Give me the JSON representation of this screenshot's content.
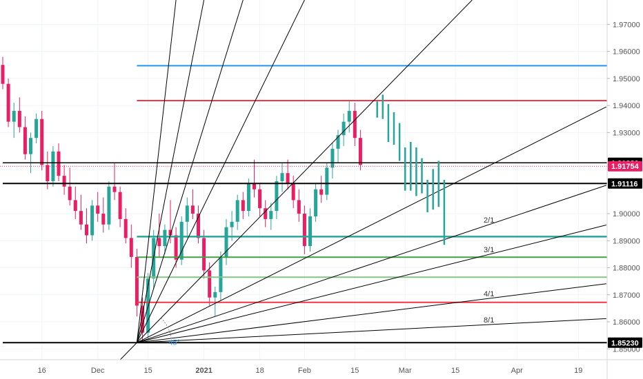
{
  "chart_data": {
    "type": "candlestick",
    "ylim": [
      1.846,
      1.979
    ],
    "y_ticks": [
      1.97,
      1.96,
      1.95,
      1.94,
      1.93,
      1.9,
      1.89,
      1.88,
      1.87,
      1.86,
      1.85
    ],
    "y_tick_labels": [
      "1.97000",
      "1.96000",
      "1.95000",
      "1.94000",
      "1.93000",
      "1.90000",
      "1.89000",
      "1.88000",
      "1.87000",
      "1.86000",
      "1.85000"
    ],
    "x_range": [
      0,
      107
    ],
    "x_ticks": [
      {
        "index": 7,
        "label": "16"
      },
      {
        "index": 17,
        "label": "Dec"
      },
      {
        "index": 26,
        "label": "15"
      },
      {
        "index": 36,
        "label": "2021",
        "bold": true
      },
      {
        "index": 46,
        "label": "18"
      },
      {
        "index": 54,
        "label": "Feb"
      },
      {
        "index": 63,
        "label": "15"
      },
      {
        "index": 72,
        "label": "Mar"
      },
      {
        "index": 81,
        "label": "15"
      },
      {
        "index": 92,
        "label": "Apr"
      },
      {
        "index": 103,
        "label": "19"
      }
    ],
    "price_badges": [
      {
        "value": 1.9188,
        "label": "1.91880",
        "bg": "#000000",
        "fg": "#ffffff"
      },
      {
        "value": 1.91754,
        "label": "1.91754",
        "bg": "#e91e63",
        "fg": "#ffffff"
      },
      {
        "value": 1.91116,
        "label": "1.91116",
        "bg": "#000000",
        "fg": "#ffffff"
      },
      {
        "value": 1.8523,
        "label": "1.85230",
        "bg": "#000000",
        "fg": "#ffffff"
      }
    ],
    "last_price": 1.91754,
    "horizontal_levels": [
      {
        "value": 1.9547,
        "start": 24,
        "color": "#2196f3",
        "width": 2
      },
      {
        "value": 1.9418,
        "start": 24,
        "color": "#f23645",
        "width": 2
      },
      {
        "value": 1.9188,
        "start": 0,
        "color": "#000000",
        "width": 1.5
      },
      {
        "value": 1.91116,
        "start": 0,
        "color": "#000000",
        "width": 2
      },
      {
        "value": 1.8915,
        "start": 24,
        "color": "#26a69a",
        "width": 2.5
      },
      {
        "value": 1.8839,
        "start": 24,
        "color": "#43a047",
        "width": 2
      },
      {
        "value": 1.8765,
        "start": 24,
        "color": "#81c784",
        "width": 2
      },
      {
        "value": 1.8672,
        "start": 24,
        "color": "#f23645",
        "width": 2
      },
      {
        "value": 1.8523,
        "start": 0,
        "color": "#000000",
        "width": 2
      }
    ],
    "gann_fan": {
      "origin": {
        "index": 24,
        "value": 1.8523
      },
      "rays": [
        {
          "index": 31,
          "value": 1.979
        },
        {
          "index": 36,
          "value": 1.979
        },
        {
          "index": 43,
          "value": 1.979
        },
        {
          "index": 54,
          "value": 1.979
        },
        {
          "index": 84,
          "value": 1.979
        },
        {
          "index": 108,
          "value": 1.9395
        },
        {
          "index": 108,
          "value": 1.9105,
          "label": "2/1",
          "label_index": 87
        },
        {
          "index": 108,
          "value": 1.8958,
          "label": "3/1",
          "label_index": 87
        },
        {
          "index": 108,
          "value": 1.8741,
          "label": "4/1",
          "label_index": 87
        },
        {
          "index": 108,
          "value": 1.8612,
          "label": "8/1",
          "label_index": 87
        }
      ],
      "arc_label": "45°"
    },
    "projection_bars": {
      "color": "#26a69a",
      "bars": [
        {
          "index": 67,
          "high": 1.9415,
          "low": 1.9355
        },
        {
          "index": 68,
          "high": 1.944,
          "low": 1.935
        },
        {
          "index": 69,
          "high": 1.9405,
          "low": 1.9265
        },
        {
          "index": 70,
          "high": 1.9375,
          "low": 1.9255
        },
        {
          "index": 71,
          "high": 1.9335,
          "low": 1.9195
        },
        {
          "index": 72,
          "high": 1.9245,
          "low": 1.9085
        },
        {
          "index": 73,
          "high": 1.9265,
          "low": 1.9085
        },
        {
          "index": 74,
          "high": 1.9245,
          "low": 1.9065
        },
        {
          "index": 75,
          "high": 1.9205,
          "low": 1.9075
        },
        {
          "index": 76,
          "high": 1.9125,
          "low": 1.9005
        },
        {
          "index": 77,
          "high": 1.9165,
          "low": 1.9015
        },
        {
          "index": 78,
          "high": 1.9195,
          "low": 1.9025
        },
        {
          "index": 79,
          "high": 1.9125,
          "low": 1.8885
        }
      ]
    },
    "candles": {
      "up_color": "#26a69a",
      "down_color": "#e91e63",
      "series": [
        [
          1.955,
          1.958,
          1.946,
          1.948
        ],
        [
          1.948,
          1.95,
          1.932,
          1.934
        ],
        [
          1.934,
          1.941,
          1.928,
          1.938
        ],
        [
          1.938,
          1.943,
          1.93,
          1.932
        ],
        [
          1.932,
          1.936,
          1.92,
          1.922
        ],
        [
          1.922,
          1.93,
          1.915,
          1.928
        ],
        [
          1.928,
          1.937,
          1.926,
          1.935
        ],
        [
          1.935,
          1.938,
          1.916,
          1.918
        ],
        [
          1.918,
          1.923,
          1.909,
          1.912
        ],
        [
          1.912,
          1.925,
          1.91,
          1.923
        ],
        [
          1.923,
          1.926,
          1.912,
          1.914
        ],
        [
          1.914,
          1.918,
          1.907,
          1.91
        ],
        [
          1.91,
          1.917,
          1.903,
          1.905
        ],
        [
          1.905,
          1.91,
          1.898,
          1.901
        ],
        [
          1.901,
          1.907,
          1.894,
          1.896
        ],
        [
          1.896,
          1.902,
          1.889,
          1.892
        ],
        [
          1.892,
          1.905,
          1.89,
          1.903
        ],
        [
          1.903,
          1.908,
          1.897,
          1.9
        ],
        [
          1.9,
          1.906,
          1.893,
          1.896
        ],
        [
          1.896,
          1.912,
          1.894,
          1.91
        ],
        [
          1.91,
          1.919,
          1.905,
          1.908
        ],
        [
          1.908,
          1.91,
          1.895,
          1.898
        ],
        [
          1.898,
          1.902,
          1.889,
          1.891
        ],
        [
          1.891,
          1.896,
          1.88,
          1.884
        ],
        [
          1.884,
          1.887,
          1.862,
          1.866
        ],
        [
          1.866,
          1.869,
          1.853,
          1.856
        ],
        [
          1.856,
          1.878,
          1.854,
          1.876
        ],
        [
          1.876,
          1.894,
          1.872,
          1.891
        ],
        [
          1.891,
          1.9,
          1.884,
          1.888
        ],
        [
          1.888,
          1.896,
          1.885,
          1.894
        ],
        [
          1.894,
          1.905,
          1.889,
          1.892
        ],
        [
          1.892,
          1.895,
          1.88,
          1.883
        ],
        [
          1.883,
          1.899,
          1.881,
          1.897
        ],
        [
          1.897,
          1.906,
          1.891,
          1.903
        ],
        [
          1.903,
          1.909,
          1.898,
          1.9
        ],
        [
          1.9,
          1.903,
          1.889,
          1.891
        ],
        [
          1.891,
          1.894,
          1.876,
          1.879
        ],
        [
          1.879,
          1.882,
          1.866,
          1.869
        ],
        [
          1.869,
          1.873,
          1.862,
          1.871
        ],
        [
          1.871,
          1.886,
          1.868,
          1.884
        ],
        [
          1.884,
          1.898,
          1.881,
          1.895
        ],
        [
          1.895,
          1.901,
          1.89,
          1.897
        ],
        [
          1.897,
          1.907,
          1.894,
          1.905
        ],
        [
          1.905,
          1.908,
          1.898,
          1.901
        ],
        [
          1.901,
          1.913,
          1.899,
          1.911
        ],
        [
          1.911,
          1.92,
          1.906,
          1.909
        ],
        [
          1.909,
          1.911,
          1.899,
          1.902
        ],
        [
          1.902,
          1.905,
          1.895,
          1.898
        ],
        [
          1.898,
          1.904,
          1.894,
          1.901
        ],
        [
          1.901,
          1.914,
          1.898,
          1.912
        ],
        [
          1.912,
          1.919,
          1.908,
          1.915
        ],
        [
          1.915,
          1.92,
          1.909,
          1.911
        ],
        [
          1.911,
          1.914,
          1.902,
          1.905
        ],
        [
          1.905,
          1.909,
          1.897,
          1.9
        ],
        [
          1.9,
          1.903,
          1.885,
          1.888
        ],
        [
          1.888,
          1.902,
          1.886,
          1.899
        ],
        [
          1.899,
          1.911,
          1.897,
          1.909
        ],
        [
          1.909,
          1.914,
          1.904,
          1.907
        ],
        [
          1.907,
          1.919,
          1.905,
          1.917
        ],
        [
          1.917,
          1.926,
          1.913,
          1.924
        ],
        [
          1.924,
          1.931,
          1.919,
          1.929
        ],
        [
          1.929,
          1.937,
          1.925,
          1.934
        ],
        [
          1.934,
          1.942,
          1.93,
          1.938
        ],
        [
          1.938,
          1.941,
          1.925,
          1.928
        ],
        [
          1.928,
          1.931,
          1.916,
          1.918
        ]
      ]
    }
  }
}
